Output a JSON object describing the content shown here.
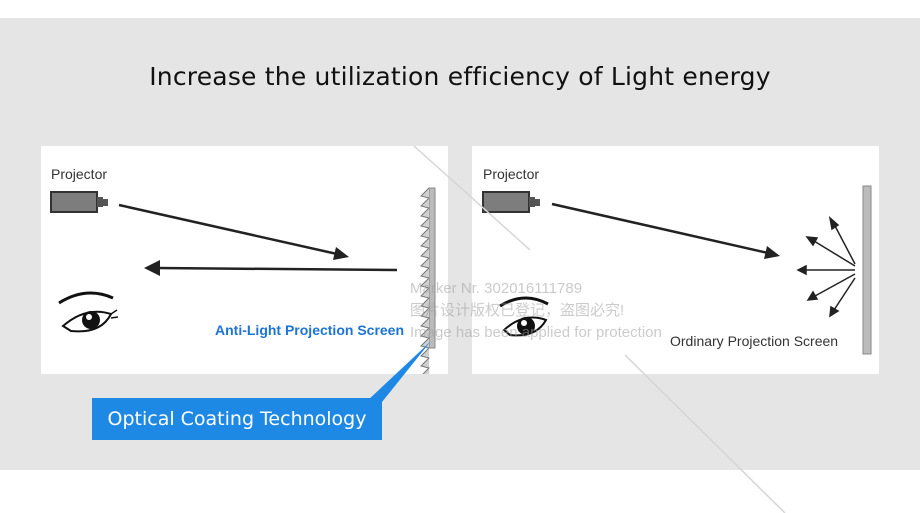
{
  "headline": "Increase the utilization efficiency of Light energy",
  "left_panel": {
    "projector_label": "Projector",
    "screen_label": "Anti-Light Projection Screen"
  },
  "right_panel": {
    "projector_label": "Projector",
    "screen_label": "Ordinary Projection Screen"
  },
  "callout": {
    "text": "Optical Coating Technology"
  },
  "watermark": {
    "line1": "Marker Nr. 302016111789",
    "line2": "图片设计版权已登记，盗图必究!",
    "line3": "Image has been applied for protection"
  },
  "colors": {
    "accent": "#1e88e5",
    "label_blue": "#1e74d6",
    "band_gray": "#e5e5e5"
  }
}
